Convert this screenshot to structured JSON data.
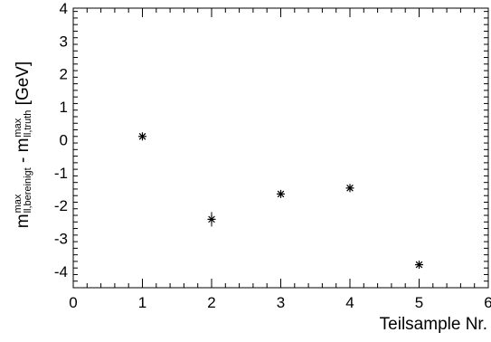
{
  "chart_data": {
    "type": "scatter",
    "xlabel": "Teilsample Nr.",
    "ylabel": {
      "m1": "m",
      "m1_sup": "max",
      "m1_sub": "ll,bereinigt",
      "minus": " - ",
      "m2": "m",
      "m2_sup": "max",
      "m2_sub": "ll,truth",
      "unit": " [GeV]"
    },
    "xlim": [
      0,
      6
    ],
    "ylim": [
      -4.5,
      4
    ],
    "x_ticks": [
      0,
      1,
      2,
      3,
      4,
      5,
      6
    ],
    "y_ticks": [
      -4,
      -3,
      -2,
      -1,
      0,
      1,
      2,
      3,
      4
    ],
    "grid": false,
    "marker": "asterisk",
    "points": [
      {
        "x": 1,
        "y": 0.1,
        "err": 0.08
      },
      {
        "x": 2,
        "y": -2.42,
        "err": 0.22
      },
      {
        "x": 3,
        "y": -1.65,
        "err": 0.1
      },
      {
        "x": 4,
        "y": -1.47,
        "err": 0.1
      },
      {
        "x": 5,
        "y": -3.8,
        "err": 0.08
      }
    ]
  }
}
